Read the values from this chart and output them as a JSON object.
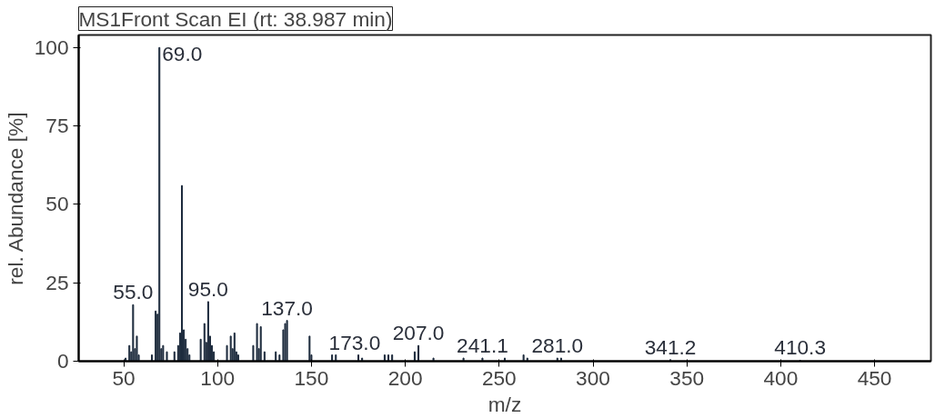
{
  "chart_data": {
    "type": "bar",
    "title": "MS1Front Scan EI (rt: 38.987 min)",
    "xlabel": "m/z",
    "ylabel": "rel. Abundance [%]",
    "x": [
      51,
      53,
      54,
      55,
      56,
      57,
      58,
      65,
      67,
      68,
      69,
      70,
      71,
      73,
      77,
      79,
      80,
      81,
      82,
      83,
      84,
      85,
      91,
      93,
      94,
      95,
      96,
      97,
      98,
      105,
      107,
      108,
      109,
      110,
      111,
      119,
      121,
      122,
      123,
      125,
      131,
      133,
      135,
      136,
      137,
      149,
      150,
      161,
      163,
      175,
      177,
      189,
      191,
      193,
      205,
      207,
      215,
      231,
      241.1,
      253,
      263,
      265,
      281,
      283,
      341.2,
      410.3
    ],
    "values": [
      1,
      5,
      3,
      18,
      4,
      8,
      2,
      2,
      16,
      15,
      100,
      4,
      5,
      3,
      3,
      5,
      9,
      56,
      10,
      7,
      4,
      2,
      7,
      12,
      6,
      19,
      8,
      5,
      3,
      5,
      8,
      4,
      9,
      3,
      2,
      5,
      12,
      4,
      11,
      3,
      3,
      2,
      10,
      12,
      13,
      8,
      2,
      2,
      2,
      2,
      1,
      2,
      2,
      2,
      3,
      5,
      1,
      1,
      1,
      1,
      2,
      1,
      1,
      1,
      0.5,
      0.3
    ],
    "color": "#1c2a3c",
    "xlim": [
      26,
      480
    ],
    "ylim": [
      0,
      104
    ],
    "xticks": [
      50,
      100,
      150,
      200,
      250,
      300,
      350,
      400,
      450
    ],
    "yticks": [
      0,
      25,
      50,
      75,
      100
    ],
    "grid": false,
    "annotations": [
      {
        "text": "55.0",
        "x": 55,
        "y": 18
      },
      {
        "text": "69.0",
        "x": 69,
        "y": 100
      },
      {
        "text": "95.0",
        "x": 95,
        "y": 19
      },
      {
        "text": "137.0",
        "x": 137,
        "y": 13
      },
      {
        "text": "173.0",
        "x": 173,
        "y": 2
      },
      {
        "text": "207.0",
        "x": 207,
        "y": 5
      },
      {
        "text": "241.1",
        "x": 241.1,
        "y": 1
      },
      {
        "text": "281.0",
        "x": 281,
        "y": 1
      },
      {
        "text": "341.2",
        "x": 341.2,
        "y": 0.5
      },
      {
        "text": "410.3",
        "x": 410.3,
        "y": 0.3
      }
    ]
  }
}
